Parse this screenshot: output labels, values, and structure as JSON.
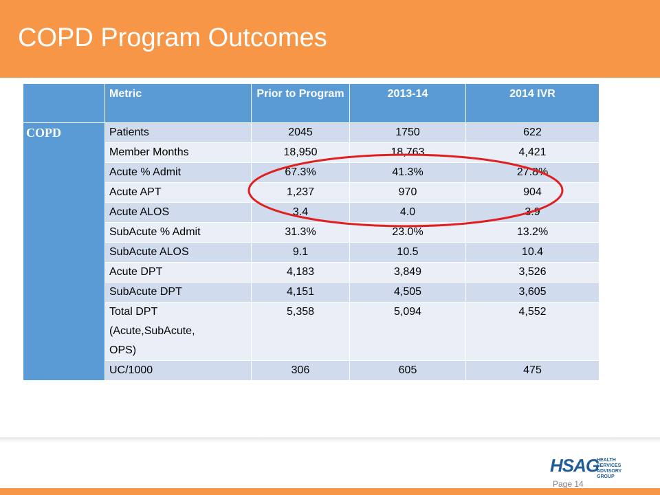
{
  "header": {
    "title": "COPD Program Outcomes"
  },
  "table": {
    "columns": [
      "Metric",
      "Prior to Program",
      "2013-14",
      "2014 IVR"
    ],
    "group": "COPD",
    "rows": [
      [
        "Patients",
        "2045",
        "1750",
        "622"
      ],
      [
        "Member Months",
        "18,950",
        "18,763",
        "4,421"
      ],
      [
        "Acute % Admit",
        "67.3%",
        "41.3%",
        "27.8%"
      ],
      [
        "Acute APT",
        "1,237",
        "970",
        "904"
      ],
      [
        "Acute ALOS",
        "3.4",
        "4.0",
        "3.9"
      ],
      [
        "SubAcute % Admit",
        "31.3%",
        "23.0%",
        "13.2%"
      ],
      [
        "SubAcute ALOS",
        "9.1",
        "10.5",
        "10.4"
      ],
      [
        "Acute DPT",
        "4,183",
        "3,849",
        "3,526"
      ],
      [
        "SubAcute DPT",
        "4,151",
        "4,505",
        "3,605"
      ],
      [
        "Total DPT (Acute,SubAcute, OPS)",
        "5,358",
        "5,094",
        "4,552"
      ],
      [
        "UC/1000",
        "306",
        "605",
        "475"
      ]
    ]
  },
  "footer": {
    "logo": "HSAG",
    "logo_tagline": "HEALTH SERVICES ADVISORY GROUP",
    "page": "Page 14"
  }
}
